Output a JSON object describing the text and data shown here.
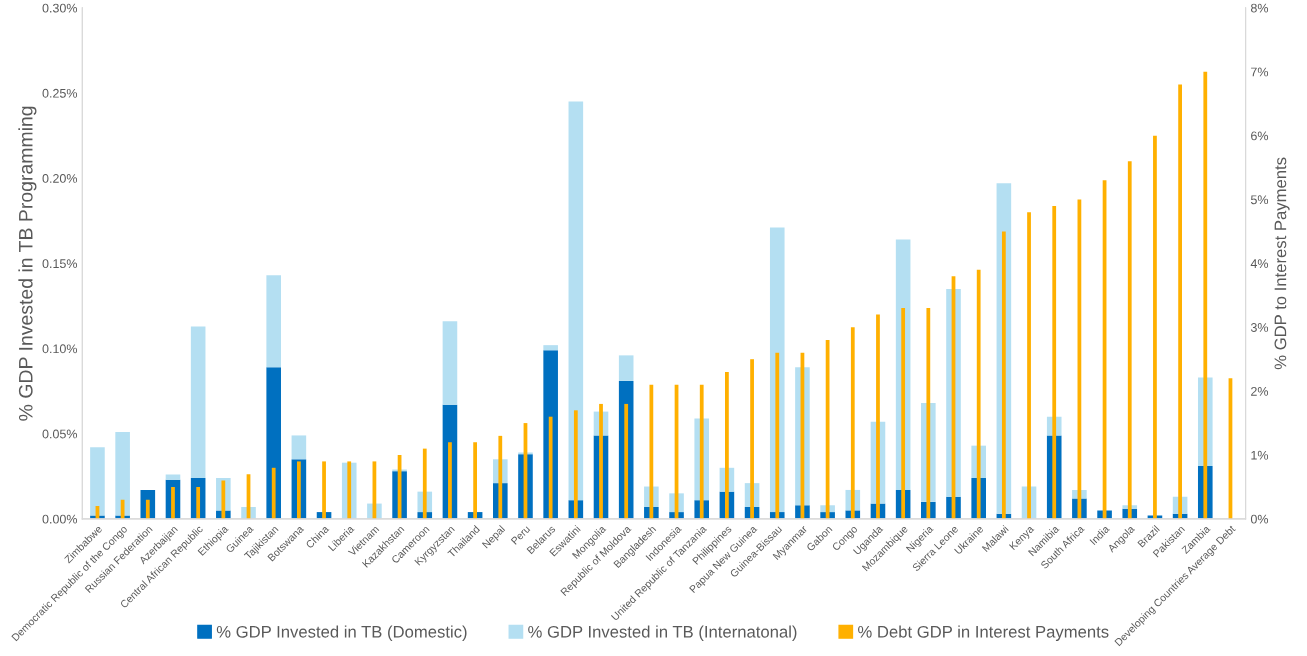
{
  "chart_data": {
    "type": "bar",
    "stacked": true,
    "legend": "bottom",
    "ylabel": "% GDP Invested in TB Programming",
    "y2label": "% GDP to Interest Payments",
    "categories": [
      "Zimbabwe",
      "Democratic Republic of the Congo",
      "Russian Federation",
      "Azerbaijan",
      "Central African Republic",
      "Ethiopia",
      "Guinea",
      "Tajikistan",
      "Botswana",
      "China",
      "Liberia",
      "Vietnam",
      "Kazakhstan",
      "Cameroon",
      "Kyrgyzstan",
      "Thailand",
      "Nepal",
      "Peru",
      "Belarus",
      "Eswatini",
      "Mongolia",
      "Republic of Moldova",
      "Bangladesh",
      "Indonesia",
      "United Republic of Tanzania",
      "Philippines",
      "Papua New Guinea",
      "Guinea-Bissau",
      "Myanmar",
      "Gabon",
      "Congo",
      "Uganda",
      "Mozambique",
      "Nigeria",
      "Sierra Leone",
      "Ukraine",
      "Malawi",
      "Kenya",
      "Namibia",
      "South Africa",
      "India",
      "Angola",
      "Brazil",
      "Pakistan",
      "Zambia",
      "Developing Countries Average Debt"
    ],
    "series": [
      {
        "name": "% GDP Invested in TB (Domestic)",
        "color": "#0070c0",
        "values": [
          0.002,
          0.002,
          0.017,
          0.023,
          0.024,
          0.005,
          0,
          0.089,
          0.035,
          0.004,
          0,
          null,
          0.028,
          0.004,
          0.067,
          0.004,
          0.021,
          0.038,
          0.099,
          0.011,
          0.049,
          0.081,
          0.007,
          0.004,
          0.011,
          0.016,
          0.007,
          0.004,
          0.008,
          0.004,
          0.005,
          0.009,
          0.017,
          0.01,
          0.013,
          0.024,
          0.003,
          null,
          0.049,
          0.012,
          0.005,
          0.006,
          0.002,
          0.003,
          0.031,
          null
        ]
      },
      {
        "name": "% GDP Invested in TB (Internatonal)",
        "color": "#b4dff2",
        "values": [
          0.04,
          0.049,
          0,
          0.003,
          0.089,
          0.019,
          0.007,
          0.054,
          0.014,
          0,
          0.033,
          0.009,
          0.001,
          0.012,
          0.049,
          0,
          0.014,
          0.001,
          0.003,
          0.234,
          0.014,
          0.015,
          0.012,
          0.011,
          0.048,
          0.014,
          0.014,
          0.167,
          0.081,
          0.004,
          0.012,
          0.048,
          0.147,
          0.058,
          0.122,
          0.019,
          0.194,
          0.019,
          0.011,
          0.005,
          null,
          0.002,
          0,
          0.01,
          0.052,
          null
        ]
      },
      {
        "name": "% Debt GDP in Interest Payments",
        "color": "#ffb000",
        "axis": "y2",
        "values": [
          0.2,
          0.3,
          0.3,
          0.5,
          0.5,
          0.6,
          0.7,
          0.8,
          0.9,
          0.9,
          0.9,
          0.9,
          1.0,
          1.1,
          1.2,
          1.2,
          1.3,
          1.5,
          1.6,
          1.7,
          1.8,
          1.8,
          2.1,
          2.1,
          2.1,
          2.3,
          2.5,
          2.6,
          2.6,
          2.8,
          3.0,
          3.2,
          3.3,
          3.3,
          3.8,
          3.9,
          4.5,
          4.8,
          4.9,
          5.0,
          5.3,
          5.6,
          6.0,
          6.8,
          7.0,
          2.2
        ]
      }
    ],
    "ylim": [
      0,
      0.3
    ],
    "yticks": [
      {
        "value": 0,
        "label": "0.00%"
      },
      {
        "value": 0.05,
        "label": "0.05%"
      },
      {
        "value": 0.1,
        "label": "0.10%"
      },
      {
        "value": 0.15,
        "label": "0.15%"
      },
      {
        "value": 0.2,
        "label": "0.20%"
      },
      {
        "value": 0.25,
        "label": "0.25%"
      },
      {
        "value": 0.3,
        "label": "0.30%"
      }
    ],
    "y2lim": [
      0,
      8
    ],
    "y2ticks": [
      {
        "value": 0,
        "label": "0%"
      },
      {
        "value": 1,
        "label": "1%"
      },
      {
        "value": 2,
        "label": "2%"
      },
      {
        "value": 3,
        "label": "3%"
      },
      {
        "value": 4,
        "label": "4%"
      },
      {
        "value": 5,
        "label": "5%"
      },
      {
        "value": 6,
        "label": "6%"
      },
      {
        "value": 7,
        "label": "7%"
      },
      {
        "value": 8,
        "label": "8%"
      }
    ]
  }
}
